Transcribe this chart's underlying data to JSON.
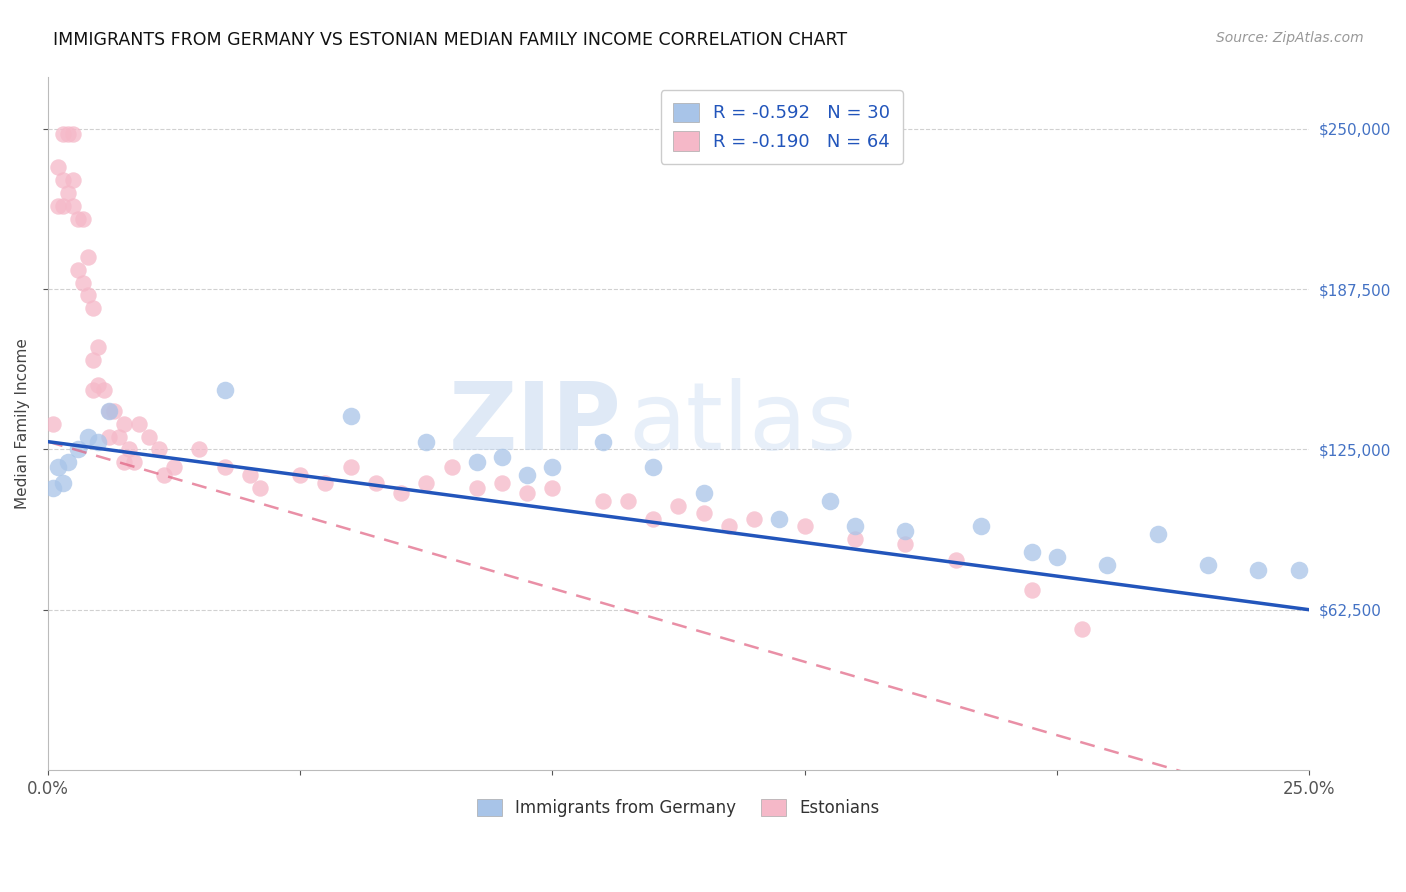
{
  "title": "IMMIGRANTS FROM GERMANY VS ESTONIAN MEDIAN FAMILY INCOME CORRELATION CHART",
  "source": "Source: ZipAtlas.com",
  "ylabel": "Median Family Income",
  "xlim": [
    0,
    0.25
  ],
  "ylim": [
    0,
    270000
  ],
  "yticks": [
    62500,
    125000,
    187500,
    250000
  ],
  "ytick_labels": [
    "$62,500",
    "$125,000",
    "$187,500",
    "$250,000"
  ],
  "xticks": [
    0.0,
    0.05,
    0.1,
    0.15,
    0.2,
    0.25
  ],
  "xtick_labels": [
    "0.0%",
    "",
    "",
    "",
    "",
    "25.0%"
  ],
  "background_color": "#ffffff",
  "grid_color": "#cccccc",
  "watermark_zip": "ZIP",
  "watermark_atlas": "atlas",
  "blue_color": "#a8c4e8",
  "pink_color": "#f5b8c8",
  "blue_line_color": "#2255bb",
  "pink_line_color": "#e06080",
  "legend_label_blue": "R = -0.592   N = 30",
  "legend_label_pink": "R = -0.190   N = 64",
  "bottom_legend_blue": "Immigrants from Germany",
  "bottom_legend_pink": "Estonians",
  "blue_x": [
    0.001,
    0.002,
    0.003,
    0.004,
    0.006,
    0.008,
    0.01,
    0.012,
    0.035,
    0.06,
    0.075,
    0.085,
    0.09,
    0.095,
    0.1,
    0.11,
    0.12,
    0.13,
    0.145,
    0.155,
    0.16,
    0.17,
    0.185,
    0.195,
    0.2,
    0.21,
    0.22,
    0.23,
    0.24,
    0.248
  ],
  "blue_y": [
    110000,
    118000,
    112000,
    120000,
    125000,
    130000,
    128000,
    140000,
    148000,
    138000,
    128000,
    120000,
    122000,
    115000,
    118000,
    128000,
    118000,
    108000,
    98000,
    105000,
    95000,
    93000,
    95000,
    85000,
    83000,
    80000,
    92000,
    80000,
    78000,
    78000
  ],
  "pink_x": [
    0.001,
    0.002,
    0.002,
    0.003,
    0.003,
    0.003,
    0.004,
    0.004,
    0.005,
    0.005,
    0.005,
    0.006,
    0.006,
    0.007,
    0.007,
    0.008,
    0.008,
    0.009,
    0.009,
    0.009,
    0.01,
    0.01,
    0.011,
    0.012,
    0.012,
    0.013,
    0.014,
    0.015,
    0.015,
    0.016,
    0.017,
    0.018,
    0.02,
    0.022,
    0.023,
    0.025,
    0.03,
    0.035,
    0.04,
    0.042,
    0.05,
    0.055,
    0.06,
    0.065,
    0.07,
    0.075,
    0.08,
    0.085,
    0.09,
    0.095,
    0.1,
    0.11,
    0.115,
    0.12,
    0.125,
    0.13,
    0.135,
    0.14,
    0.15,
    0.16,
    0.17,
    0.18,
    0.195,
    0.205
  ],
  "pink_y": [
    135000,
    235000,
    220000,
    248000,
    230000,
    220000,
    248000,
    225000,
    248000,
    230000,
    220000,
    215000,
    195000,
    215000,
    190000,
    185000,
    200000,
    180000,
    160000,
    148000,
    165000,
    150000,
    148000,
    140000,
    130000,
    140000,
    130000,
    135000,
    120000,
    125000,
    120000,
    135000,
    130000,
    125000,
    115000,
    118000,
    125000,
    118000,
    115000,
    110000,
    115000,
    112000,
    118000,
    112000,
    108000,
    112000,
    118000,
    110000,
    112000,
    108000,
    110000,
    105000,
    105000,
    98000,
    103000,
    100000,
    95000,
    98000,
    95000,
    90000,
    88000,
    82000,
    70000,
    55000
  ]
}
